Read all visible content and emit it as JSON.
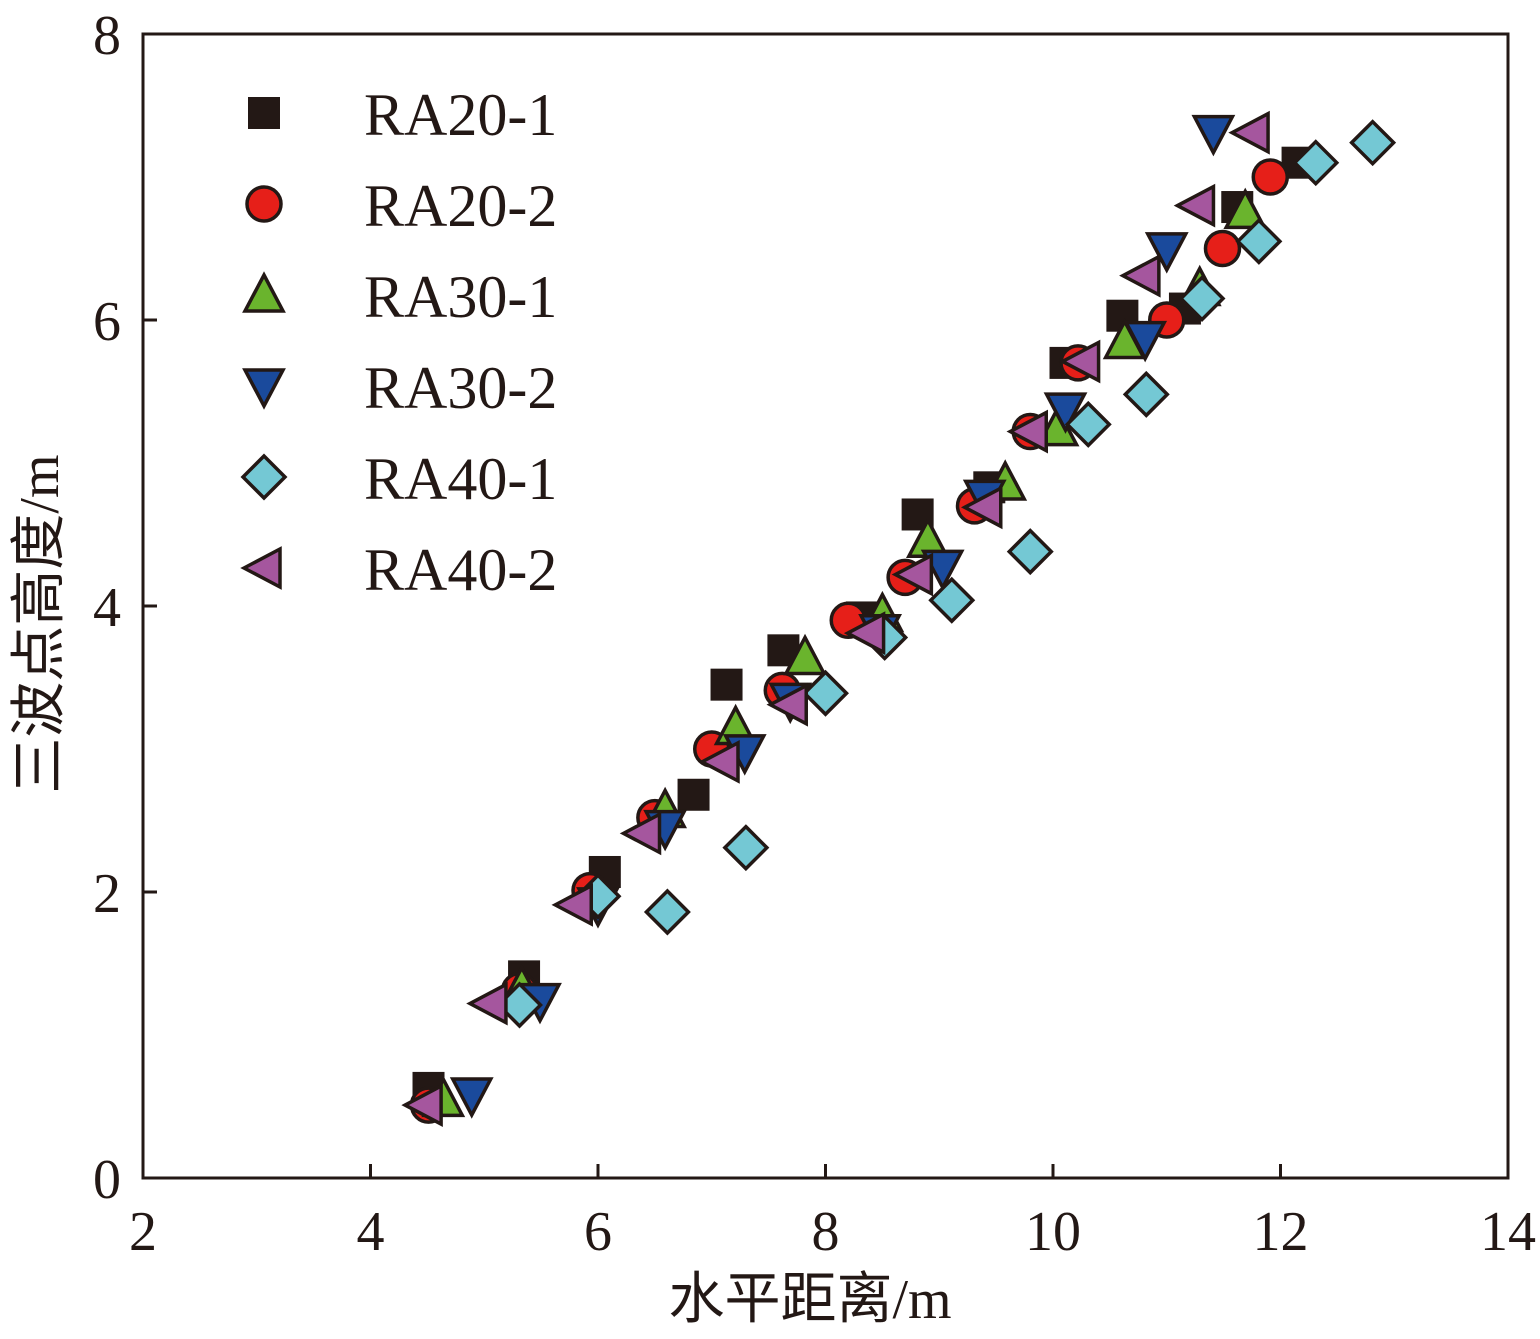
{
  "chart_data": {
    "type": "scatter",
    "title": "",
    "xlabel": "水平距离/m",
    "ylabel": "三波点高度/m",
    "xlim": [
      2,
      14
    ],
    "ylim": [
      0,
      8
    ],
    "xticks": [
      "2",
      "4",
      "6",
      "8",
      "10",
      "12",
      "14"
    ],
    "yticks": [
      "0",
      "2",
      "4",
      "6",
      "8"
    ],
    "grid": false,
    "legend_position": "top-left",
    "series": [
      {
        "name": "RA20-1",
        "marker": "square",
        "color": "#231815",
        "x": [
          4.51,
          5.35,
          6.06,
          6.84,
          7.13,
          7.63,
          8.32,
          8.81,
          9.44,
          10.11,
          10.61,
          11.16,
          11.62,
          12.15
        ],
        "y": [
          0.63,
          1.41,
          2.14,
          2.68,
          3.45,
          3.69,
          3.92,
          4.64,
          4.83,
          5.7,
          6.03,
          6.08,
          6.79,
          7.1
        ]
      },
      {
        "name": "RA20-2",
        "marker": "circle",
        "color": "#e61f19",
        "x": [
          4.51,
          5.31,
          5.93,
          6.5,
          7.0,
          7.62,
          8.2,
          8.7,
          9.31,
          9.8,
          10.22,
          11.0,
          11.49,
          11.91
        ],
        "y": [
          0.51,
          1.31,
          2.01,
          2.52,
          3.0,
          3.41,
          3.9,
          4.2,
          4.7,
          5.22,
          5.7,
          6.0,
          6.5,
          7.0
        ]
      },
      {
        "name": "RA30-1",
        "marker": "triangle-up",
        "color": "#6ab42d",
        "x": [
          4.64,
          5.33,
          6.59,
          7.21,
          7.82,
          8.5,
          8.9,
          9.58,
          10.04,
          10.63,
          11.29,
          11.69
        ],
        "y": [
          0.55,
          1.33,
          2.57,
          3.15,
          3.64,
          3.94,
          4.46,
          4.86,
          5.24,
          5.85,
          6.22,
          6.76
        ]
      },
      {
        "name": "RA30-2",
        "marker": "triangle-down",
        "color": "#1a4a9c",
        "x": [
          4.89,
          5.49,
          6.0,
          6.59,
          7.29,
          7.69,
          8.48,
          9.03,
          9.4,
          10.11,
          10.81,
          11.0,
          11.41
        ],
        "y": [
          0.58,
          1.24,
          1.91,
          2.45,
          2.98,
          3.34,
          3.82,
          4.27,
          4.76,
          5.37,
          5.87,
          6.49,
          7.31
        ]
      },
      {
        "name": "RA40-1",
        "marker": "diamond",
        "color": "#74c8d4",
        "x": [
          5.31,
          6.0,
          6.61,
          7.3,
          8.0,
          8.52,
          9.11,
          9.8,
          10.31,
          10.82,
          11.31,
          11.81,
          12.31,
          12.81
        ],
        "y": [
          1.21,
          1.97,
          1.86,
          2.31,
          3.39,
          3.78,
          4.04,
          4.38,
          5.27,
          5.48,
          6.15,
          6.55,
          7.1,
          7.24
        ]
      },
      {
        "name": "RA40-2",
        "marker": "triangle-left",
        "color": "#a5569e",
        "x": [
          4.48,
          5.05,
          5.8,
          6.4,
          7.09,
          7.69,
          8.37,
          8.79,
          9.4,
          9.8,
          10.26,
          10.79,
          11.27,
          11.75
        ],
        "y": [
          0.51,
          1.22,
          1.91,
          2.41,
          2.91,
          3.31,
          3.81,
          4.22,
          4.69,
          5.22,
          5.71,
          6.31,
          6.8,
          7.31
        ]
      }
    ]
  }
}
